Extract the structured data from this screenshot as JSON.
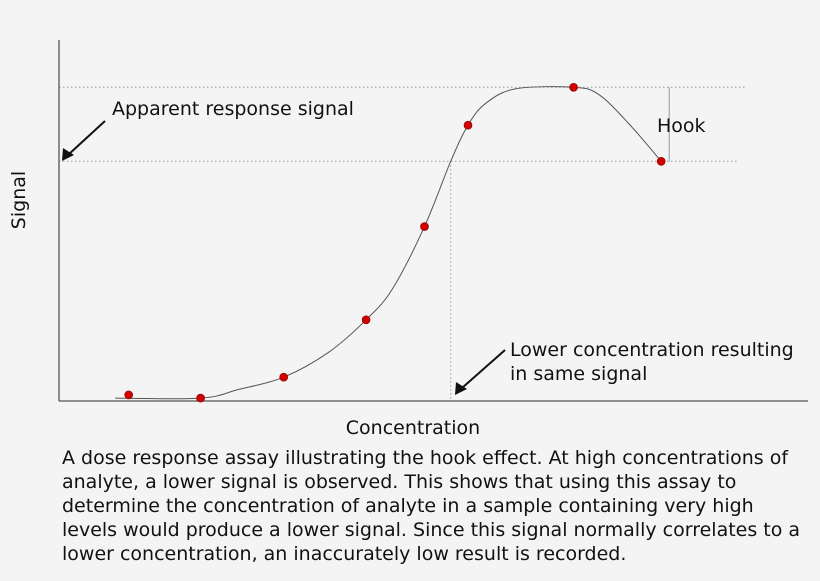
{
  "chart_data": {
    "type": "scatter",
    "title": "",
    "xlabel": "Concentration",
    "ylabel": "Signal",
    "xlim": [
      0,
      100
    ],
    "ylim": [
      0,
      100
    ],
    "grid": false,
    "points": [
      {
        "x": 9.3,
        "y": 1.7
      },
      {
        "x": 18.9,
        "y": 0.8
      },
      {
        "x": 30.0,
        "y": 6.6
      },
      {
        "x": 41.0,
        "y": 22.5
      },
      {
        "x": 48.8,
        "y": 48.3
      },
      {
        "x": 54.6,
        "y": 76.4
      },
      {
        "x": 68.7,
        "y": 86.9
      },
      {
        "x": 80.4,
        "y": 66.4
      }
    ],
    "curve": [
      {
        "x": 7.5,
        "y": 0.8
      },
      {
        "x": 18.9,
        "y": 0.8
      },
      {
        "x": 24,
        "y": 3.2
      },
      {
        "x": 30.0,
        "y": 6.6
      },
      {
        "x": 36,
        "y": 13.5
      },
      {
        "x": 41.0,
        "y": 22.5
      },
      {
        "x": 44.5,
        "y": 31.0
      },
      {
        "x": 48.8,
        "y": 48.3
      },
      {
        "x": 52.3,
        "y": 66.4
      },
      {
        "x": 54.6,
        "y": 76.4
      },
      {
        "x": 57,
        "y": 82.5
      },
      {
        "x": 61,
        "y": 86.5
      },
      {
        "x": 68.7,
        "y": 86.9
      },
      {
        "x": 72,
        "y": 85.0
      },
      {
        "x": 76,
        "y": 77.0
      },
      {
        "x": 80.4,
        "y": 66.4
      }
    ],
    "reference_levels": {
      "peak_signal": 86.9,
      "apparent_signal": 66.4,
      "lower_concentration": 52.3
    },
    "annotations": {
      "apparent": "Apparent response signal",
      "hook": "Hook",
      "lower_line1": "Lower concentration resulting",
      "lower_line2": "in same signal"
    }
  },
  "caption": "A dose response assay illustrating the hook effect. At high concentrations of analyte, a lower signal is observed. This shows that using this assay to determine the concentration of analyte in a sample containing very high levels would produce a lower signal. Since this signal normally correlates to a lower concentration, an inaccurately low result is recorded.",
  "colors": {
    "point": "#d40000",
    "curve": "#555555",
    "axis": "#555555",
    "guide": "#999999"
  }
}
